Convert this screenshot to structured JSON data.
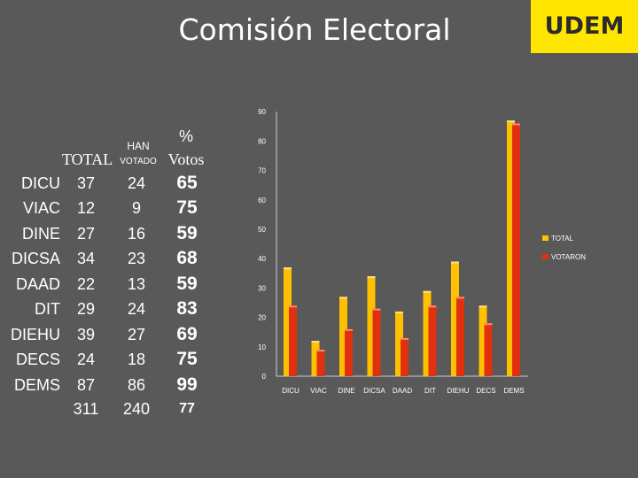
{
  "header": {
    "title": "Comisión Electoral",
    "brand": "UDEM"
  },
  "table": {
    "col_total": "TOTAL",
    "col_han_top": "HAN",
    "col_han_bottom": "VOTADO",
    "col_pct_top": "%",
    "col_pct_bottom": "Votos",
    "rows": [
      {
        "name": "DICU",
        "total": "37",
        "voted": "24",
        "pct": "65"
      },
      {
        "name": "VIAC",
        "total": "12",
        "voted": "9",
        "pct": "75"
      },
      {
        "name": "DINE",
        "total": "27",
        "voted": "16",
        "pct": "59"
      },
      {
        "name": "DICSA",
        "total": "34",
        "voted": "23",
        "pct": "68"
      },
      {
        "name": "DAAD",
        "total": "22",
        "voted": "13",
        "pct": "59"
      },
      {
        "name": "DIT",
        "total": "29",
        "voted": "24",
        "pct": "83"
      },
      {
        "name": "DIEHU",
        "total": "39",
        "voted": "27",
        "pct": "69"
      },
      {
        "name": "DECS",
        "total": "24",
        "voted": "18",
        "pct": "75"
      },
      {
        "name": "DEMS",
        "total": "87",
        "voted": "86",
        "pct": "99"
      }
    ],
    "totals": {
      "total": "311",
      "voted": "240",
      "pct": "77"
    }
  },
  "chart_data": {
    "type": "bar",
    "categories": [
      "DICU",
      "VIAC",
      "DINE",
      "DICSA",
      "DAAD",
      "DIT",
      "DIEHU",
      "DECS",
      "DEMS"
    ],
    "series": [
      {
        "name": "TOTAL",
        "values": [
          37,
          12,
          27,
          34,
          22,
          29,
          39,
          24,
          87
        ],
        "color": "#ffc000"
      },
      {
        "name": "VOTARON",
        "values": [
          24,
          9,
          16,
          23,
          13,
          24,
          27,
          18,
          86
        ],
        "color": "#e03010"
      }
    ],
    "ylim": [
      0,
      90
    ],
    "yticks": [
      0,
      10,
      20,
      30,
      40,
      50,
      60,
      70,
      80,
      90
    ],
    "legend": "right",
    "grid": false
  }
}
